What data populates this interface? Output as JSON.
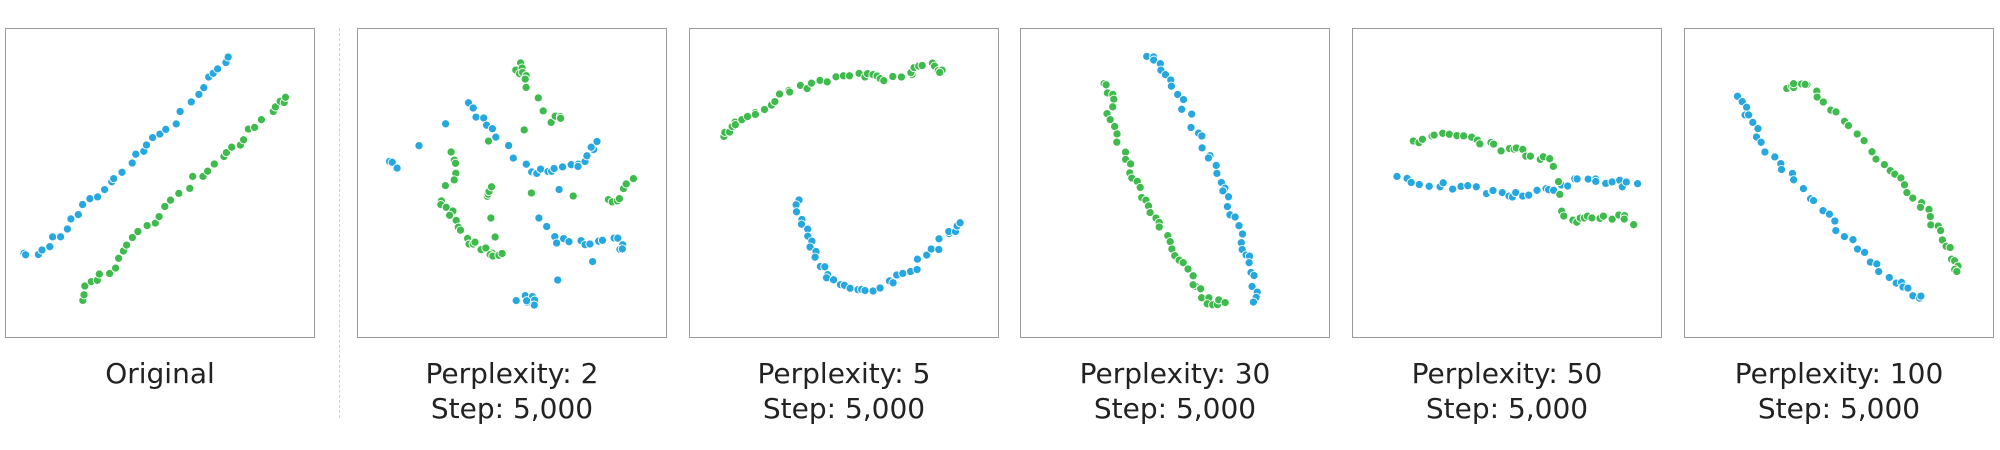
{
  "chart_data": [
    {
      "type": "scatter",
      "caption": [
        "Original"
      ],
      "colors": [
        "#27a7df",
        "#3ebb4c"
      ],
      "series": [
        {
          "values": [
            [
              0.05,
              0.26
            ],
            [
              0.12,
              0.28
            ],
            [
              0.18,
              0.33
            ],
            [
              0.24,
              0.4
            ],
            [
              0.3,
              0.46
            ],
            [
              0.36,
              0.52
            ],
            [
              0.42,
              0.59
            ],
            [
              0.48,
              0.64
            ],
            [
              0.55,
              0.7
            ],
            [
              0.62,
              0.78
            ],
            [
              0.68,
              0.86
            ],
            [
              0.73,
              0.9
            ]
          ]
        },
        {
          "values": [
            [
              0.24,
              0.12
            ],
            [
              0.28,
              0.17
            ],
            [
              0.33,
              0.21
            ],
            [
              0.38,
              0.27
            ],
            [
              0.44,
              0.33
            ],
            [
              0.5,
              0.4
            ],
            [
              0.57,
              0.47
            ],
            [
              0.64,
              0.53
            ],
            [
              0.7,
              0.58
            ],
            [
              0.76,
              0.62
            ],
            [
              0.82,
              0.69
            ],
            [
              0.88,
              0.75
            ],
            [
              0.92,
              0.77
            ]
          ]
        }
      ]
    },
    {
      "type": "scatter",
      "caption": [
        "Perplexity: 2",
        "Step: 5,000"
      ],
      "colors": [
        "#27a7df",
        "#3ebb4c"
      ],
      "series": [
        {
          "values": [
            [
              0.1,
              0.57
            ],
            [
              0.12,
              0.55
            ],
            [
              0.36,
              0.75
            ],
            [
              0.4,
              0.71
            ],
            [
              0.45,
              0.65
            ],
            [
              0.55,
              0.55
            ],
            [
              0.59,
              0.53
            ],
            [
              0.62,
              0.54
            ],
            [
              0.7,
              0.55
            ],
            [
              0.75,
              0.59
            ],
            [
              0.78,
              0.64
            ],
            [
              0.6,
              0.38
            ],
            [
              0.65,
              0.31
            ],
            [
              0.72,
              0.3
            ],
            [
              0.78,
              0.31
            ],
            [
              0.85,
              0.31
            ],
            [
              0.87,
              0.28
            ],
            [
              0.55,
              0.14
            ],
            [
              0.58,
              0.1
            ],
            [
              0.52,
              0.12
            ]
          ]
        },
        {
          "values": [
            [
              0.52,
              0.86
            ],
            [
              0.53,
              0.89
            ],
            [
              0.54,
              0.85
            ],
            [
              0.55,
              0.82
            ],
            [
              0.64,
              0.7
            ],
            [
              0.66,
              0.72
            ],
            [
              0.31,
              0.6
            ],
            [
              0.32,
              0.54
            ],
            [
              0.27,
              0.45
            ],
            [
              0.3,
              0.4
            ],
            [
              0.32,
              0.35
            ],
            [
              0.36,
              0.31
            ],
            [
              0.4,
              0.29
            ],
            [
              0.44,
              0.27
            ],
            [
              0.47,
              0.26
            ],
            [
              0.43,
              0.46
            ],
            [
              0.44,
              0.48
            ],
            [
              0.82,
              0.44
            ],
            [
              0.85,
              0.45
            ],
            [
              0.9,
              0.52
            ]
          ]
        }
      ]
    },
    {
      "type": "scatter",
      "caption": [
        "Perplexity: 5",
        "Step: 5,000"
      ],
      "colors": [
        "#27a7df",
        "#3ebb4c"
      ],
      "series": [
        {
          "values": [
            [
              0.35,
              0.44
            ],
            [
              0.36,
              0.39
            ],
            [
              0.38,
              0.33
            ],
            [
              0.4,
              0.27
            ],
            [
              0.43,
              0.22
            ],
            [
              0.46,
              0.18
            ],
            [
              0.53,
              0.15
            ],
            [
              0.58,
              0.15
            ],
            [
              0.64,
              0.17
            ],
            [
              0.7,
              0.2
            ],
            [
              0.75,
              0.24
            ],
            [
              0.8,
              0.29
            ],
            [
              0.85,
              0.34
            ],
            [
              0.89,
              0.37
            ]
          ]
        },
        {
          "values": [
            [
              0.1,
              0.65
            ],
            [
              0.13,
              0.68
            ],
            [
              0.17,
              0.7
            ],
            [
              0.22,
              0.73
            ],
            [
              0.28,
              0.77
            ],
            [
              0.33,
              0.8
            ],
            [
              0.4,
              0.82
            ],
            [
              0.47,
              0.84
            ],
            [
              0.54,
              0.85
            ],
            [
              0.6,
              0.86
            ],
            [
              0.64,
              0.84
            ],
            [
              0.72,
              0.86
            ],
            [
              0.75,
              0.88
            ],
            [
              0.8,
              0.88
            ],
            [
              0.82,
              0.86
            ]
          ]
        }
      ]
    },
    {
      "type": "scatter",
      "caption": [
        "Perplexity: 30",
        "Step: 5,000"
      ],
      "colors": [
        "#27a7df",
        "#3ebb4c"
      ],
      "series": [
        {
          "values": [
            [
              0.42,
              0.92
            ],
            [
              0.45,
              0.88
            ],
            [
              0.48,
              0.83
            ],
            [
              0.52,
              0.76
            ],
            [
              0.56,
              0.69
            ],
            [
              0.6,
              0.62
            ],
            [
              0.63,
              0.55
            ],
            [
              0.66,
              0.49
            ],
            [
              0.68,
              0.42
            ],
            [
              0.71,
              0.36
            ],
            [
              0.73,
              0.29
            ],
            [
              0.75,
              0.23
            ],
            [
              0.76,
              0.17
            ],
            [
              0.76,
              0.12
            ]
          ]
        },
        {
          "values": [
            [
              0.27,
              0.82
            ],
            [
              0.3,
              0.79
            ],
            [
              0.29,
              0.72
            ],
            [
              0.31,
              0.65
            ],
            [
              0.34,
              0.58
            ],
            [
              0.37,
              0.52
            ],
            [
              0.39,
              0.46
            ],
            [
              0.42,
              0.41
            ],
            [
              0.46,
              0.35
            ],
            [
              0.49,
              0.29
            ],
            [
              0.53,
              0.23
            ],
            [
              0.56,
              0.17
            ],
            [
              0.59,
              0.13
            ],
            [
              0.63,
              0.1
            ],
            [
              0.66,
              0.11
            ]
          ]
        }
      ]
    },
    {
      "type": "scatter",
      "caption": [
        "Perplexity: 50",
        "Step: 5,000"
      ],
      "colors": [
        "#27a7df",
        "#3ebb4c"
      ],
      "series": [
        {
          "values": [
            [
              0.15,
              0.52
            ],
            [
              0.22,
              0.5
            ],
            [
              0.3,
              0.49
            ],
            [
              0.38,
              0.48
            ],
            [
              0.45,
              0.47
            ],
            [
              0.5,
              0.46
            ],
            [
              0.56,
              0.46
            ],
            [
              0.62,
              0.47
            ],
            [
              0.68,
              0.49
            ],
            [
              0.74,
              0.51
            ],
            [
              0.8,
              0.51
            ],
            [
              0.86,
              0.5
            ],
            [
              0.92,
              0.49
            ]
          ]
        },
        {
          "values": [
            [
              0.2,
              0.63
            ],
            [
              0.25,
              0.65
            ],
            [
              0.32,
              0.65
            ],
            [
              0.38,
              0.64
            ],
            [
              0.44,
              0.62
            ],
            [
              0.5,
              0.61
            ],
            [
              0.56,
              0.6
            ],
            [
              0.6,
              0.58
            ],
            [
              0.65,
              0.56
            ],
            [
              0.68,
              0.4
            ],
            [
              0.72,
              0.37
            ],
            [
              0.76,
              0.38
            ],
            [
              0.8,
              0.38
            ],
            [
              0.86,
              0.39
            ],
            [
              0.91,
              0.37
            ]
          ]
        }
      ]
    },
    {
      "type": "scatter",
      "caption": [
        "Perplexity: 100",
        "Step: 5,000"
      ],
      "colors": [
        "#27a7df",
        "#3ebb4c"
      ],
      "series": [
        {
          "values": [
            [
              0.18,
              0.78
            ],
            [
              0.2,
              0.73
            ],
            [
              0.23,
              0.67
            ],
            [
              0.27,
              0.61
            ],
            [
              0.32,
              0.55
            ],
            [
              0.38,
              0.48
            ],
            [
              0.44,
              0.41
            ],
            [
              0.5,
              0.35
            ],
            [
              0.56,
              0.29
            ],
            [
              0.62,
              0.23
            ],
            [
              0.68,
              0.18
            ],
            [
              0.73,
              0.15
            ],
            [
              0.77,
              0.12
            ]
          ]
        },
        {
          "values": [
            [
              0.34,
              0.8
            ],
            [
              0.36,
              0.83
            ],
            [
              0.4,
              0.82
            ],
            [
              0.46,
              0.77
            ],
            [
              0.52,
              0.7
            ],
            [
              0.58,
              0.63
            ],
            [
              0.64,
              0.56
            ],
            [
              0.7,
              0.51
            ],
            [
              0.75,
              0.46
            ],
            [
              0.79,
              0.41
            ],
            [
              0.82,
              0.35
            ],
            [
              0.85,
              0.3
            ],
            [
              0.88,
              0.24
            ],
            [
              0.88,
              0.2
            ]
          ]
        }
      ]
    }
  ]
}
